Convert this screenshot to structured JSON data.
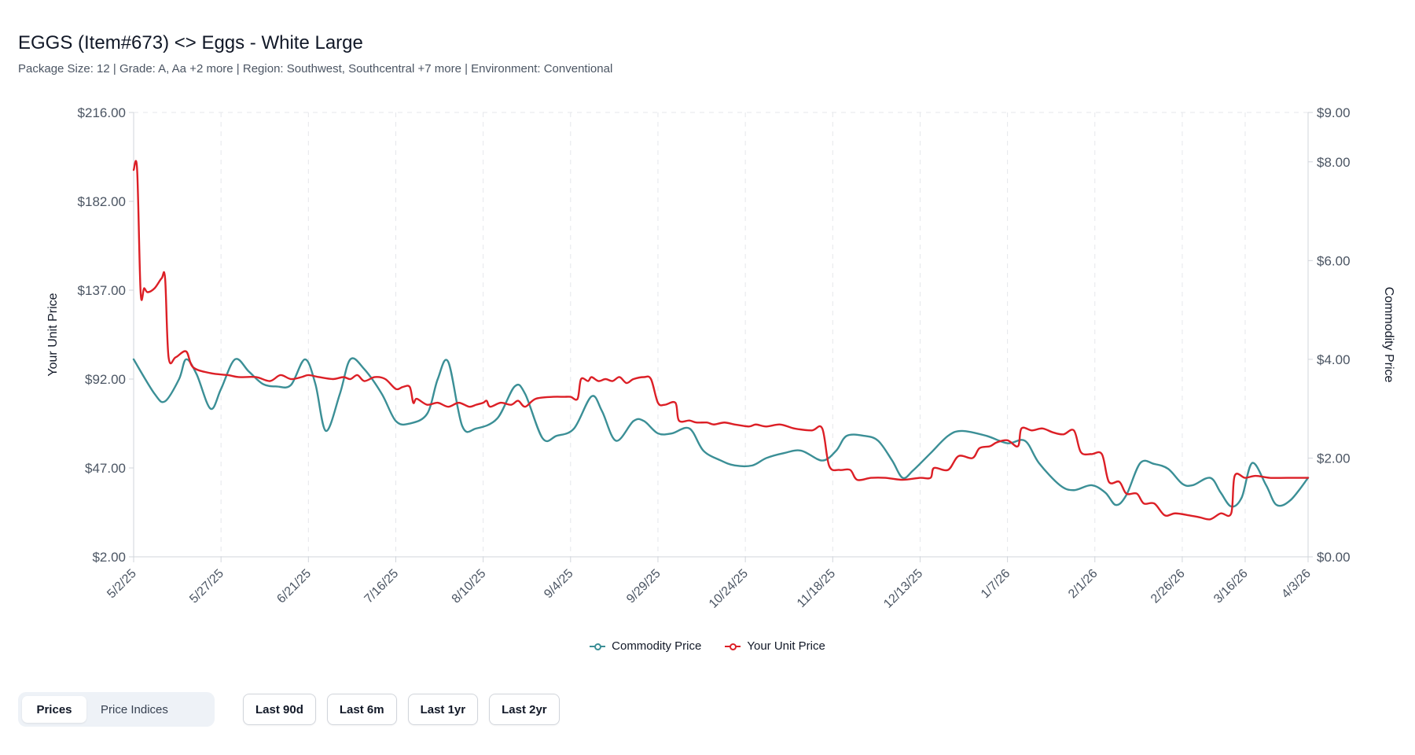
{
  "page": {
    "title": "EGGS (Item#673) <> Eggs - White Large",
    "subtitle": "Package Size: 12 | Grade: A, Aa +2 more | Region: Southwest, Southcentral +7 more | Environment: Conventional"
  },
  "controls": {
    "view_tabs": [
      {
        "label": "Prices",
        "active": true
      },
      {
        "label": "Price Indices",
        "active": false
      }
    ],
    "range_buttons": [
      "Last 90d",
      "Last 6m",
      "Last 1yr",
      "Last 2yr"
    ]
  },
  "colors": {
    "commodity": "#3b8f96",
    "unit": "#dc1f26",
    "grid": "#e5e7eb",
    "axis": "#9ca3af"
  },
  "chart_data": {
    "type": "line",
    "title": "",
    "xlabel": "",
    "ylabel_left": "Your Unit Price",
    "ylabel_right": "Commodity Price",
    "grid": true,
    "legend_position": "bottom",
    "xlim": [
      "2025-05-02",
      "2026-04-03"
    ],
    "x_ticks": [
      "5/2/25",
      "5/27/25",
      "6/21/25",
      "7/16/25",
      "8/10/25",
      "9/4/25",
      "9/29/25",
      "10/24/25",
      "11/18/25",
      "12/13/25",
      "1/7/26",
      "2/1/26",
      "2/26/26",
      "3/16/26",
      "4/3/26"
    ],
    "y_left_ticks": [
      "$216.00",
      "$182.00",
      "$137.00",
      "$92.00",
      "$47.00",
      "$2.00"
    ],
    "y_left_tick_values": [
      216,
      182,
      137,
      92,
      47,
      2
    ],
    "y_right_ticks": [
      "$9.00",
      "$8.00",
      "$6.00",
      "$4.00",
      "$2.00",
      "$0.00"
    ],
    "y_right_tick_values": [
      9,
      8,
      6,
      4,
      2,
      0
    ],
    "series": [
      {
        "name": "Commodity Price",
        "axis": "right",
        "color": "#3b8f96",
        "points": [
          [
            "2025-05-02",
            4.0
          ],
          [
            "2025-05-08",
            3.3
          ],
          [
            "2025-05-11",
            3.15
          ],
          [
            "2025-05-15",
            3.6
          ],
          [
            "2025-05-17",
            4.0
          ],
          [
            "2025-05-20",
            3.7
          ],
          [
            "2025-05-24",
            3.0
          ],
          [
            "2025-05-27",
            3.4
          ],
          [
            "2025-05-31",
            4.0
          ],
          [
            "2025-06-04",
            3.75
          ],
          [
            "2025-06-08",
            3.5
          ],
          [
            "2025-06-12",
            3.45
          ],
          [
            "2025-06-16",
            3.48
          ],
          [
            "2025-06-20",
            4.0
          ],
          [
            "2025-06-23",
            3.5
          ],
          [
            "2025-06-26",
            2.55
          ],
          [
            "2025-06-30",
            3.3
          ],
          [
            "2025-07-03",
            4.0
          ],
          [
            "2025-07-07",
            3.8
          ],
          [
            "2025-07-12",
            3.3
          ],
          [
            "2025-07-16",
            2.75
          ],
          [
            "2025-07-20",
            2.7
          ],
          [
            "2025-07-25",
            2.9
          ],
          [
            "2025-07-28",
            3.6
          ],
          [
            "2025-07-31",
            3.95
          ],
          [
            "2025-08-04",
            2.65
          ],
          [
            "2025-08-08",
            2.6
          ],
          [
            "2025-08-14",
            2.8
          ],
          [
            "2025-08-19",
            3.45
          ],
          [
            "2025-08-22",
            3.3
          ],
          [
            "2025-08-27",
            2.4
          ],
          [
            "2025-08-31",
            2.45
          ],
          [
            "2025-09-05",
            2.6
          ],
          [
            "2025-09-10",
            3.25
          ],
          [
            "2025-09-13",
            2.95
          ],
          [
            "2025-09-17",
            2.35
          ],
          [
            "2025-09-22",
            2.75
          ],
          [
            "2025-09-25",
            2.75
          ],
          [
            "2025-09-29",
            2.5
          ],
          [
            "2025-10-03",
            2.5
          ],
          [
            "2025-10-08",
            2.6
          ],
          [
            "2025-10-12",
            2.15
          ],
          [
            "2025-10-17",
            1.95
          ],
          [
            "2025-10-21",
            1.85
          ],
          [
            "2025-10-26",
            1.85
          ],
          [
            "2025-10-30",
            2.0
          ],
          [
            "2025-11-04",
            2.1
          ],
          [
            "2025-11-09",
            2.15
          ],
          [
            "2025-11-15",
            1.95
          ],
          [
            "2025-11-19",
            2.15
          ],
          [
            "2025-11-22",
            2.45
          ],
          [
            "2025-11-27",
            2.45
          ],
          [
            "2025-12-01",
            2.35
          ],
          [
            "2025-12-05",
            1.95
          ],
          [
            "2025-12-08",
            1.6
          ],
          [
            "2025-12-11",
            1.75
          ],
          [
            "2025-12-16",
            2.1
          ],
          [
            "2025-12-21",
            2.45
          ],
          [
            "2025-12-25",
            2.55
          ],
          [
            "2026-01-01",
            2.45
          ],
          [
            "2026-01-07",
            2.3
          ],
          [
            "2026-01-12",
            2.35
          ],
          [
            "2026-01-16",
            1.9
          ],
          [
            "2026-01-22",
            1.45
          ],
          [
            "2026-01-26",
            1.35
          ],
          [
            "2026-01-31",
            1.45
          ],
          [
            "2026-02-04",
            1.3
          ],
          [
            "2026-02-07",
            1.05
          ],
          [
            "2026-02-10",
            1.25
          ],
          [
            "2026-02-14",
            1.9
          ],
          [
            "2026-02-18",
            1.88
          ],
          [
            "2026-02-22",
            1.78
          ],
          [
            "2026-02-26",
            1.48
          ],
          [
            "2026-03-01",
            1.45
          ],
          [
            "2026-03-06",
            1.6
          ],
          [
            "2026-03-09",
            1.3
          ],
          [
            "2026-03-12",
            1.02
          ],
          [
            "2026-03-15",
            1.2
          ],
          [
            "2026-03-18",
            1.9
          ],
          [
            "2026-03-22",
            1.45
          ],
          [
            "2026-03-25",
            1.05
          ],
          [
            "2026-03-29",
            1.15
          ],
          [
            "2026-04-03",
            1.6
          ]
        ]
      },
      {
        "name": "Your Unit Price",
        "axis": "left",
        "color": "#dc1f26",
        "points": [
          [
            "2025-05-02",
            194
          ],
          [
            "2025-05-03",
            194
          ],
          [
            "2025-05-04",
            136
          ],
          [
            "2025-05-05",
            138
          ],
          [
            "2025-05-06",
            136
          ],
          [
            "2025-05-08",
            138
          ],
          [
            "2025-05-10",
            143
          ],
          [
            "2025-05-11",
            143
          ],
          [
            "2025-05-12",
            103
          ],
          [
            "2025-05-14",
            103
          ],
          [
            "2025-05-17",
            106
          ],
          [
            "2025-05-19",
            98
          ],
          [
            "2025-05-24",
            95
          ],
          [
            "2025-05-29",
            94
          ],
          [
            "2025-06-01",
            93
          ],
          [
            "2025-06-06",
            93
          ],
          [
            "2025-06-10",
            91
          ],
          [
            "2025-06-13",
            94
          ],
          [
            "2025-06-16",
            92
          ],
          [
            "2025-06-19",
            93
          ],
          [
            "2025-06-21",
            94
          ],
          [
            "2025-06-24",
            93
          ],
          [
            "2025-06-28",
            92
          ],
          [
            "2025-07-01",
            93
          ],
          [
            "2025-07-03",
            92
          ],
          [
            "2025-07-05",
            94
          ],
          [
            "2025-07-07",
            91
          ],
          [
            "2025-07-10",
            93
          ],
          [
            "2025-07-13",
            92
          ],
          [
            "2025-07-16",
            87
          ],
          [
            "2025-07-18",
            88
          ],
          [
            "2025-07-20",
            88
          ],
          [
            "2025-07-21",
            80
          ],
          [
            "2025-07-22",
            82
          ],
          [
            "2025-07-25",
            79
          ],
          [
            "2025-07-28",
            80
          ],
          [
            "2025-07-31",
            78
          ],
          [
            "2025-08-03",
            80
          ],
          [
            "2025-08-06",
            78
          ],
          [
            "2025-08-08",
            79
          ],
          [
            "2025-08-10",
            80
          ],
          [
            "2025-08-11",
            81
          ],
          [
            "2025-08-12",
            78
          ],
          [
            "2025-08-15",
            80
          ],
          [
            "2025-08-18",
            79
          ],
          [
            "2025-08-20",
            81
          ],
          [
            "2025-08-22",
            78
          ],
          [
            "2025-08-25",
            82
          ],
          [
            "2025-08-30",
            83
          ],
          [
            "2025-09-02",
            83
          ],
          [
            "2025-09-04",
            83
          ],
          [
            "2025-09-06",
            82
          ],
          [
            "2025-09-07",
            92
          ],
          [
            "2025-09-09",
            91
          ],
          [
            "2025-09-10",
            93
          ],
          [
            "2025-09-12",
            91
          ],
          [
            "2025-09-14",
            92
          ],
          [
            "2025-09-16",
            91
          ],
          [
            "2025-09-18",
            93
          ],
          [
            "2025-09-20",
            90
          ],
          [
            "2025-09-22",
            92
          ],
          [
            "2025-09-25",
            93
          ],
          [
            "2025-09-27",
            92
          ],
          [
            "2025-09-29",
            80
          ],
          [
            "2025-10-01",
            79
          ],
          [
            "2025-10-04",
            80
          ],
          [
            "2025-10-05",
            71
          ],
          [
            "2025-10-08",
            71
          ],
          [
            "2025-10-10",
            70
          ],
          [
            "2025-10-13",
            70
          ],
          [
            "2025-10-15",
            69
          ],
          [
            "2025-10-18",
            70
          ],
          [
            "2025-10-21",
            69
          ],
          [
            "2025-10-25",
            68
          ],
          [
            "2025-10-27",
            69
          ],
          [
            "2025-10-30",
            68
          ],
          [
            "2025-11-03",
            69
          ],
          [
            "2025-11-07",
            67
          ],
          [
            "2025-11-12",
            66
          ],
          [
            "2025-11-15",
            67
          ],
          [
            "2025-11-17",
            48
          ],
          [
            "2025-11-20",
            46
          ],
          [
            "2025-11-23",
            46
          ],
          [
            "2025-11-25",
            41
          ],
          [
            "2025-11-29",
            42
          ],
          [
            "2025-12-03",
            42
          ],
          [
            "2025-12-08",
            41
          ],
          [
            "2025-12-13",
            42
          ],
          [
            "2025-12-16",
            42
          ],
          [
            "2025-12-17",
            47
          ],
          [
            "2025-12-21",
            46
          ],
          [
            "2025-12-24",
            53
          ],
          [
            "2025-12-28",
            52
          ],
          [
            "2025-12-30",
            57
          ],
          [
            "2026-01-02",
            58
          ],
          [
            "2026-01-04",
            60
          ],
          [
            "2026-01-07",
            61
          ],
          [
            "2026-01-10",
            58
          ],
          [
            "2026-01-11",
            67
          ],
          [
            "2026-01-14",
            66
          ],
          [
            "2026-01-17",
            67
          ],
          [
            "2026-01-20",
            65
          ],
          [
            "2026-01-23",
            64
          ],
          [
            "2026-01-26",
            66
          ],
          [
            "2026-01-28",
            55
          ],
          [
            "2026-01-31",
            54
          ],
          [
            "2026-02-03",
            54
          ],
          [
            "2026-02-05",
            40
          ],
          [
            "2026-02-08",
            40
          ],
          [
            "2026-02-10",
            34
          ],
          [
            "2026-02-13",
            34
          ],
          [
            "2026-02-15",
            29
          ],
          [
            "2026-02-18",
            29
          ],
          [
            "2026-02-21",
            23
          ],
          [
            "2026-02-24",
            24
          ],
          [
            "2026-02-28",
            23
          ],
          [
            "2026-03-03",
            22
          ],
          [
            "2026-03-06",
            21
          ],
          [
            "2026-03-09",
            24
          ],
          [
            "2026-03-12",
            24
          ],
          [
            "2026-03-13",
            43
          ],
          [
            "2026-03-16",
            42
          ],
          [
            "2026-03-19",
            43
          ],
          [
            "2026-03-23",
            42
          ],
          [
            "2026-03-28",
            42
          ],
          [
            "2026-04-03",
            42
          ]
        ]
      }
    ]
  }
}
